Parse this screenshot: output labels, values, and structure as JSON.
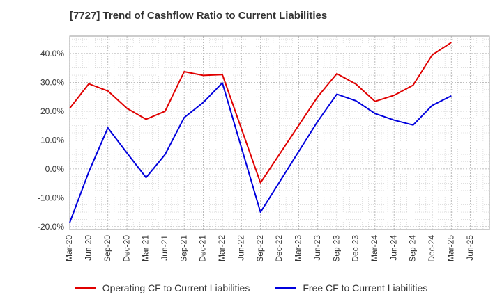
{
  "chart_data": {
    "type": "line",
    "title": "[7727]  Trend of Cashflow Ratio to Current Liabilities",
    "xlabel": "",
    "ylabel": "",
    "ylim": [
      -21,
      46
    ],
    "yticks": [
      "-20.0%",
      "-10.0%",
      "0.0%",
      "10.0%",
      "20.0%",
      "30.0%",
      "40.0%"
    ],
    "ytick_values": [
      -20,
      -10,
      0,
      10,
      20,
      30,
      40
    ],
    "xticks": [
      "Mar-20",
      "Jun-20",
      "Sep-20",
      "Dec-20",
      "Mar-21",
      "Jun-21",
      "Sep-21",
      "Dec-21",
      "Mar-22",
      "Jun-22",
      "Sep-22",
      "Dec-22",
      "Mar-23",
      "Jun-23",
      "Sep-23",
      "Dec-23",
      "Mar-24",
      "Jun-24",
      "Sep-24",
      "Dec-24",
      "Mar-25",
      "Jun-25"
    ],
    "grid": true,
    "legend_position": "bottom",
    "series": [
      {
        "name": "Operating CF to Current Liabilities",
        "color": "#e00000",
        "points": [
          [
            "Mar-20",
            21.0
          ],
          [
            "Jun-20",
            29.5
          ],
          [
            "Sep-20",
            27.0
          ],
          [
            "Dec-20",
            21.0
          ],
          [
            "Mar-21",
            17.2
          ],
          [
            "Jun-21",
            20.0
          ],
          [
            "Sep-21",
            33.7
          ],
          [
            "Dec-21",
            32.4
          ],
          [
            "Mar-22",
            32.7
          ],
          [
            "Sep-22",
            -4.8
          ],
          [
            "Jun-23",
            25.0
          ],
          [
            "Sep-23",
            33.0
          ],
          [
            "Dec-23",
            29.4
          ],
          [
            "Mar-24",
            23.4
          ],
          [
            "Jun-24",
            25.5
          ],
          [
            "Sep-24",
            29.0
          ],
          [
            "Dec-24",
            39.5
          ],
          [
            "Mar-25",
            43.8
          ]
        ]
      },
      {
        "name": "Free CF to Current Liabilities",
        "color": "#0000dd",
        "points": [
          [
            "Mar-20",
            -18.6
          ],
          [
            "Jun-20",
            -1.0
          ],
          [
            "Sep-20",
            14.2
          ],
          [
            "Dec-20",
            5.5
          ],
          [
            "Mar-21",
            -3.0
          ],
          [
            "Jun-21",
            5.0
          ],
          [
            "Sep-21",
            17.8
          ],
          [
            "Dec-21",
            23.0
          ],
          [
            "Mar-22",
            29.8
          ],
          [
            "Sep-22",
            -15.0
          ],
          [
            "Jun-23",
            16.5
          ],
          [
            "Sep-23",
            25.9
          ],
          [
            "Dec-23",
            23.6
          ],
          [
            "Mar-24",
            19.2
          ],
          [
            "Jun-24",
            16.9
          ],
          [
            "Sep-24",
            15.2
          ],
          [
            "Dec-24",
            22.0
          ],
          [
            "Mar-25",
            25.3
          ]
        ]
      }
    ]
  }
}
